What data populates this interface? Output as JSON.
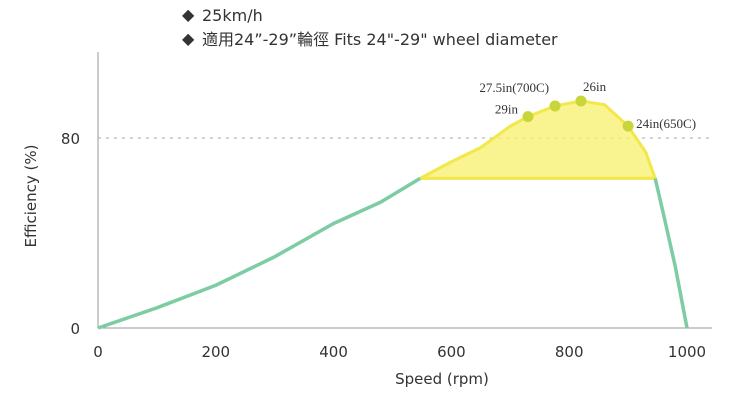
{
  "notes": [
    "25km/h",
    "適用24”-29”輪徑  Fits 24\"-29\" wheel diameter"
  ],
  "chart_data": {
    "type": "line",
    "title": "",
    "xlabel": "Speed (rpm)",
    "ylabel": "Efficiency (%)",
    "xlim": [
      0,
      1000
    ],
    "ylim": [
      0,
      100
    ],
    "xticks": [
      0,
      200,
      400,
      600,
      800,
      1000
    ],
    "yticks": [
      0,
      80
    ],
    "reference_line": {
      "y": 80,
      "style": "dashed",
      "color": "#aaaaaa"
    },
    "curve": {
      "color": "#7dcca3",
      "x": [
        0,
        100,
        200,
        300,
        400,
        480,
        547,
        600,
        650,
        700,
        730,
        776,
        820,
        860,
        900,
        930,
        946,
        960,
        980,
        1000
      ],
      "y": [
        0,
        8.5,
        18,
        30,
        44,
        53,
        63,
        70,
        76,
        85,
        89,
        93.5,
        95.6,
        94,
        85,
        74,
        63,
        48,
        26,
        0
      ]
    },
    "highlight_region": {
      "color": "#f7f06a",
      "x_range": [
        547,
        946
      ],
      "baseline": 63
    },
    "points": [
      {
        "label": "29in",
        "x": 730,
        "y": 89
      },
      {
        "label": "27.5in(700C)",
        "x": 776,
        "y": 93.5
      },
      {
        "label": "26in",
        "x": 820,
        "y": 95.6
      },
      {
        "label": "24in(650C)",
        "x": 900,
        "y": 85
      }
    ],
    "point_color": "#c9d63a",
    "grid": false
  }
}
